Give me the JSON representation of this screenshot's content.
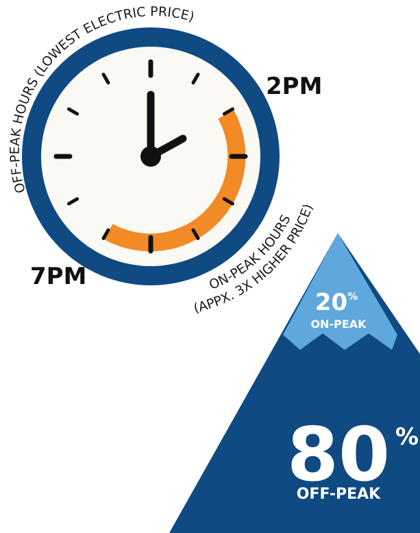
{
  "clock": {
    "off_peak_label": "OFF-PEAK HOURS (LOWEST ELECTRIC PRICE)",
    "on_peak_label_line1": "ON-PEAK HOURS",
    "on_peak_label_line2": "(APPX. 3X HIGHER PRICE)",
    "time_start": "2PM",
    "time_end": "7PM"
  },
  "mountain": {
    "on_peak_value": "20",
    "on_peak_unit": "%",
    "on_peak_label": "ON-PEAK",
    "off_peak_value": "80",
    "off_peak_unit": "%",
    "off_peak_label": "OFF-PEAK"
  },
  "colors": {
    "navy": "#0f4a83",
    "light_blue": "#5fa8de",
    "orange": "#f28a25",
    "clock_face": "#faf9f4",
    "hands": "#111111"
  }
}
